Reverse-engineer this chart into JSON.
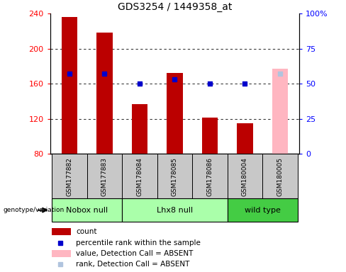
{
  "title": "GDS3254 / 1449358_at",
  "samples": [
    "GSM177882",
    "GSM177883",
    "GSM178084",
    "GSM178085",
    "GSM178086",
    "GSM180004",
    "GSM180005"
  ],
  "count_values": [
    236,
    218,
    137,
    172,
    121,
    115,
    null
  ],
  "absent_value": 177,
  "absent_percentile": 57,
  "percentile_rank": [
    57,
    57,
    50,
    53,
    50,
    50,
    null
  ],
  "ylim_left": [
    80,
    240
  ],
  "ylim_right": [
    0,
    100
  ],
  "yticks_left": [
    80,
    120,
    160,
    200,
    240
  ],
  "yticks_right": [
    0,
    25,
    50,
    75,
    100
  ],
  "bar_color_normal": "#BB0000",
  "bar_color_absent": "#FFB6C1",
  "rank_color_normal": "#0000CC",
  "rank_color_absent": "#B0C4DE",
  "absent_indices": [
    6
  ],
  "groups": [
    {
      "label": "Nobox null",
      "start": 0,
      "end": 1,
      "color": "#AAFFAA"
    },
    {
      "label": "Lhx8 null",
      "start": 2,
      "end": 4,
      "color": "#AAFFAA"
    },
    {
      "label": "wild type",
      "start": 5,
      "end": 6,
      "color": "#44CC44"
    }
  ],
  "sample_box_color": "#C8C8C8",
  "legend_items": [
    {
      "color": "#BB0000",
      "type": "rect",
      "label": "count"
    },
    {
      "color": "#0000CC",
      "type": "square",
      "label": "percentile rank within the sample"
    },
    {
      "color": "#FFB6C1",
      "type": "rect",
      "label": "value, Detection Call = ABSENT"
    },
    {
      "color": "#B0C4DE",
      "type": "square",
      "label": "rank, Detection Call = ABSENT"
    }
  ]
}
